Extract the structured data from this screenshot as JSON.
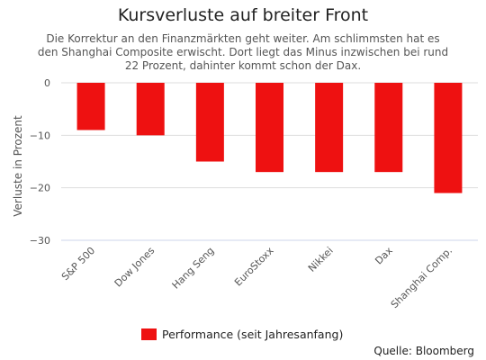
{
  "title": "Kursverluste auf breiter Front",
  "subtitle": "Die Korrektur an den Finanzmärkten geht weiter. Am schlimmsten hat es den Shanghai Composite erwischt. Dort liegt das Minus inzwischen bei rund 22 Prozent, dahinter kommt schon der Dax.",
  "source": "Quelle: Bloomberg",
  "colors": {
    "bar": "#ee1111",
    "grid": "#dddddd",
    "axis": "#ccd6eb"
  },
  "chart_data": {
    "type": "bar",
    "categories": [
      "S&P 500",
      "Dow Jones",
      "Hang Seng",
      "EuroStoxx",
      "Nikkei",
      "Dax",
      "Shanghai Comp."
    ],
    "series": [
      {
        "name": "Performance (seit Jahresanfang)",
        "values": [
          -9,
          -10,
          -15,
          -17,
          -17,
          -17,
          -21
        ]
      }
    ],
    "ylabel": "Verluste in Prozent",
    "xlabel": "",
    "ylim": [
      -30,
      0
    ],
    "yticks": [
      0,
      -10,
      -20,
      -30
    ],
    "grid": true,
    "legend": "bottom-center"
  }
}
